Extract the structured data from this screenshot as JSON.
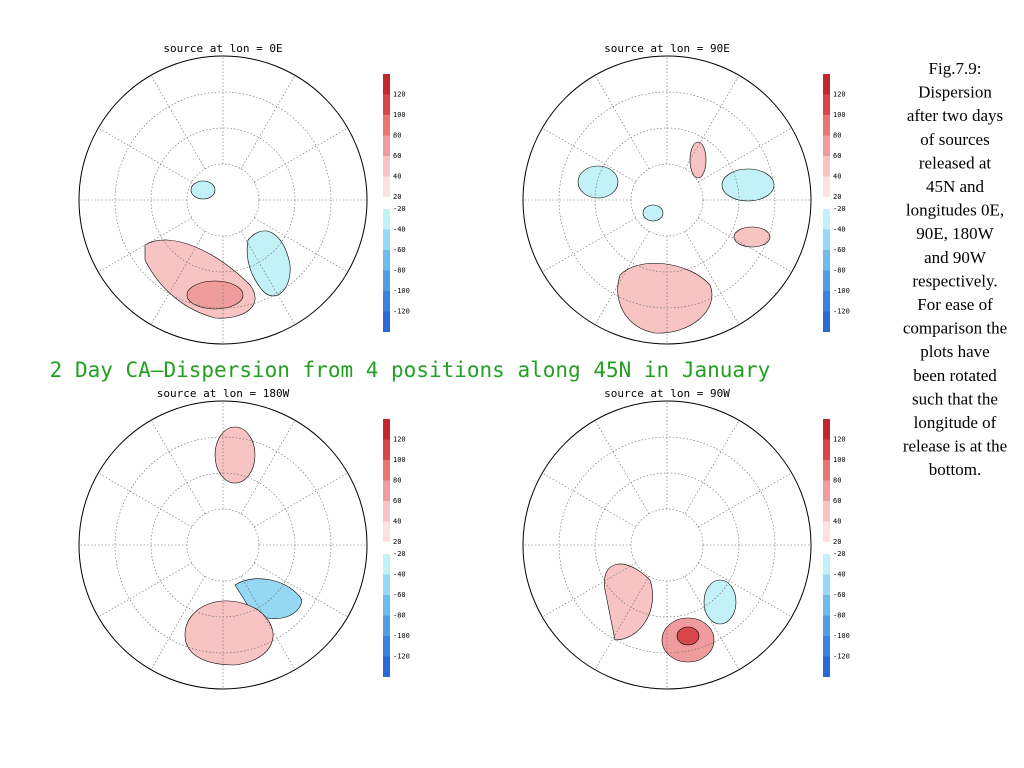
{
  "main_title": "2 Day CA–Dispersion from 4 positions along 45N in January",
  "panels": [
    {
      "title": "source at lon = 0E"
    },
    {
      "title": "source at lon = 90E"
    },
    {
      "title": "source at lon = 180W"
    },
    {
      "title": "source at lon = 90W"
    }
  ],
  "colorbar": {
    "levels": [
      120,
      100,
      80,
      60,
      40,
      20,
      -20,
      -40,
      -60,
      -80,
      -100,
      -120
    ],
    "colors": [
      "#c1272d",
      "#d8464c",
      "#e87474",
      "#f19c9c",
      "#f7c3c3",
      "#fde1e1",
      "#c3f1f8",
      "#95d8f3",
      "#6fbbec",
      "#509de6",
      "#3c82e0",
      "#2b68d8"
    ]
  },
  "caption": [
    "Fig.7.9:",
    "Dispersion",
    "after two days",
    "of sources",
    "released at",
    "45N and",
    "longitudes 0E,",
    "90E, 180W",
    "and 90W",
    "respectively.",
    "For ease of",
    "comparison the",
    "plots have",
    "been rotated",
    "such that the",
    "longitude of",
    "release is at the",
    "bottom."
  ]
}
